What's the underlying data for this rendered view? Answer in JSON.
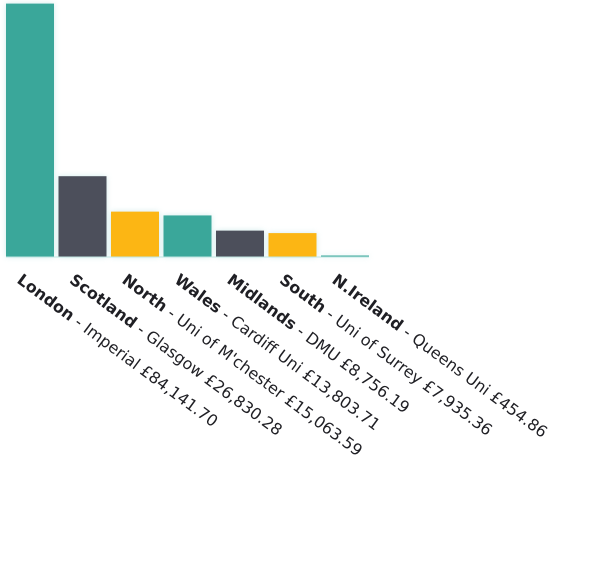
{
  "chart_data": {
    "type": "bar",
    "title": "",
    "xlabel": "",
    "ylabel": "",
    "categories": [
      "London",
      "Scotland",
      "North",
      "Wales",
      "Midlands",
      "South",
      "N.Ireland"
    ],
    "values": [
      84141.7,
      26830.28,
      15063.59,
      13803.71,
      8756.19,
      7935.36,
      454.86
    ],
    "labels": [
      {
        "region": "London",
        "detail": " - Imperial £84,141.70"
      },
      {
        "region": "Scotland",
        "detail": " - Glasgow £26,830.28"
      },
      {
        "region": "North",
        "detail": " - Uni of M'chester £15,063.59"
      },
      {
        "region": "Wales",
        "detail": " - Cardiff Uni £13,803.71"
      },
      {
        "region": "Midlands",
        "detail": " - DMU £8,756.19"
      },
      {
        "region": "South",
        "detail": " - Uni of Surrey £7,935.36"
      },
      {
        "region": "N.Ireland",
        "detail": " - Queens Uni £454.86"
      }
    ],
    "colors": [
      "#3aa79a",
      "#4c4f5b",
      "#fcb614",
      "#3aa79a",
      "#4c4f5b",
      "#fcb614",
      "#3aa79a"
    ],
    "ylim": [
      0,
      86000
    ],
    "grid": false,
    "legend": "none"
  }
}
